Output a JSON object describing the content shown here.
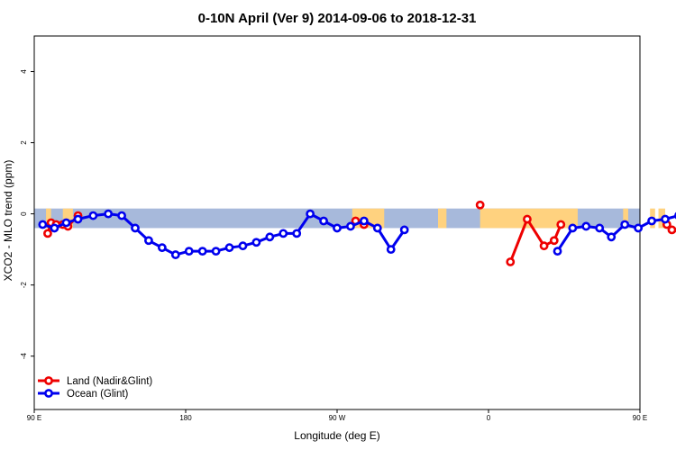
{
  "chart_data": {
    "type": "line",
    "title": "0-10N April (Ver 9)   2014-09-06 to 2018-12-31",
    "xlabel": "Longitude (deg E)",
    "ylabel": "XCO2 - MLO trend (ppm)",
    "xlim": [
      90,
      450
    ],
    "ylim": [
      -5.5,
      5
    ],
    "x_ticks": [
      {
        "value": 90,
        "label": "90 E"
      },
      {
        "value": 180,
        "label": "180"
      },
      {
        "value": 270,
        "label": "90 W"
      },
      {
        "value": 360,
        "label": "0"
      },
      {
        "value": 450,
        "label": "90 E"
      },
      {
        "value": 540,
        "label": "180"
      }
    ],
    "y_ticks": [
      -4,
      -2,
      0,
      2,
      4
    ],
    "band": {
      "y_top": 0.15,
      "y_bottom": -0.4,
      "ocean_color": "#a7b9db",
      "land_color": "#ffd27f"
    },
    "land_segments": [
      [
        97,
        100
      ],
      [
        107,
        113
      ],
      [
        279,
        298
      ],
      [
        330,
        335
      ],
      [
        355,
        413
      ],
      [
        440,
        443
      ],
      [
        456,
        459
      ],
      [
        461,
        465
      ],
      [
        478,
        483
      ]
    ],
    "legend": {
      "position": "bottom-left"
    },
    "series": [
      {
        "name": "Land (Nadir&Glint)",
        "color": "#ee0000",
        "segments": [
          [
            [
              98,
              -0.55
            ],
            [
              100,
              -0.25
            ],
            [
              103,
              -0.3
            ],
            [
              107,
              -0.3
            ],
            [
              110,
              -0.35
            ],
            [
              116,
              -0.05
            ]
          ],
          [
            [
              281,
              -0.2
            ],
            [
              286,
              -0.3
            ]
          ],
          [
            [
              355,
              0.25
            ]
          ],
          [
            [
              373,
              -1.35
            ],
            [
              383,
              -0.15
            ],
            [
              393,
              -0.9
            ],
            [
              399,
              -0.75
            ],
            [
              403,
              -0.3
            ]
          ],
          [
            [
              466,
              -0.3
            ],
            [
              469,
              -0.45
            ],
            [
              475,
              -0.5
            ],
            [
              479,
              -0.55
            ],
            [
              482,
              -0.3
            ],
            [
              493,
              -0.35
            ],
            [
              498,
              -0.05
            ]
          ]
        ]
      },
      {
        "name": "Ocean (Glint)",
        "color": "#0000ee",
        "points": [
          [
            95,
            -0.3
          ],
          [
            102,
            -0.4
          ],
          [
            109,
            -0.25
          ],
          [
            116,
            -0.15
          ],
          [
            125,
            -0.05
          ],
          [
            134,
            0.0
          ],
          [
            142,
            -0.05
          ],
          [
            150,
            -0.4
          ],
          [
            158,
            -0.75
          ],
          [
            166,
            -0.95
          ],
          [
            174,
            -1.15
          ],
          [
            182,
            -1.05
          ],
          [
            190,
            -1.05
          ],
          [
            198,
            -1.05
          ],
          [
            206,
            -0.95
          ],
          [
            214,
            -0.9
          ],
          [
            222,
            -0.8
          ],
          [
            230,
            -0.65
          ],
          [
            238,
            -0.55
          ],
          [
            246,
            -0.55
          ],
          [
            254,
            0.0
          ],
          [
            262,
            -0.2
          ],
          [
            270,
            -0.4
          ],
          [
            278,
            -0.35
          ],
          [
            286,
            -0.2
          ],
          [
            294,
            -0.4
          ],
          [
            302,
            -1.0
          ],
          [
            310,
            -0.45
          ],
          null,
          [
            401,
            -1.05
          ],
          [
            410,
            -0.4
          ],
          [
            418,
            -0.35
          ],
          [
            426,
            -0.4
          ],
          [
            433,
            -0.65
          ],
          [
            441,
            -0.3
          ],
          [
            449,
            -0.4
          ],
          [
            457,
            -0.2
          ],
          [
            465,
            -0.15
          ],
          [
            473,
            -0.05
          ],
          [
            481,
            0.0
          ],
          [
            489,
            -0.05
          ],
          [
            497,
            -0.45
          ],
          [
            505,
            -0.75
          ]
        ]
      }
    ]
  }
}
